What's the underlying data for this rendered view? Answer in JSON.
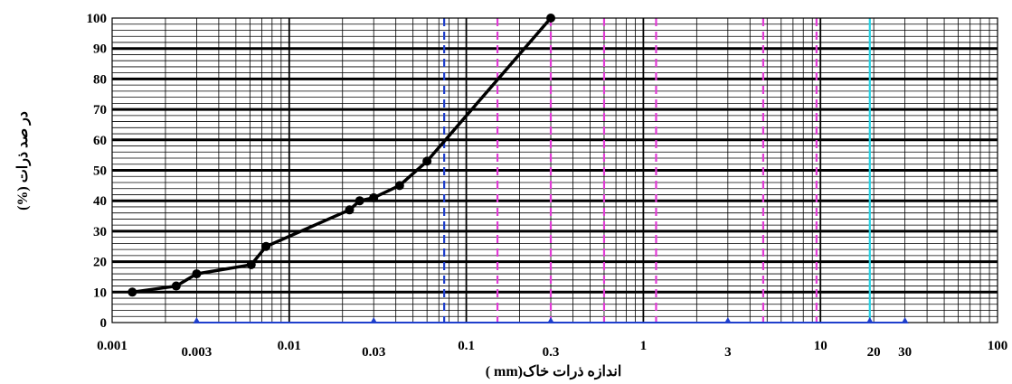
{
  "chart_data": {
    "type": "line",
    "xlabel": "اندازه ذرات خاک(mm )",
    "ylabel": "در صد ذرات (%)",
    "x_scale": "log",
    "xlim": [
      0.001,
      100
    ],
    "ylim": [
      0,
      100
    ],
    "grid": true,
    "y_ticks": [
      "0",
      "10",
      "20",
      "30",
      "40",
      "50",
      "60",
      "70",
      "80",
      "90",
      "100"
    ],
    "x_ticks_upper": [
      {
        "value": 0.001,
        "label": "0.001"
      },
      {
        "value": 0.01,
        "label": "0.01"
      },
      {
        "value": 0.1,
        "label": "0.1"
      },
      {
        "value": 1,
        "label": "1"
      },
      {
        "value": 10,
        "label": "10"
      },
      {
        "value": 100,
        "label": "100"
      }
    ],
    "x_ticks_lower": [
      {
        "value": 0.003,
        "label": "0.003"
      },
      {
        "value": 0.03,
        "label": "0.03"
      },
      {
        "value": 0.3,
        "label": "0.3"
      },
      {
        "value": 3,
        "label": "3"
      },
      {
        "value": 20,
        "label": "20"
      },
      {
        "value": 30,
        "label": "30"
      }
    ],
    "series": [
      {
        "color": "#000000",
        "points": [
          {
            "x": 0.0013,
            "y": 10
          },
          {
            "x": 0.0023,
            "y": 12
          },
          {
            "x": 0.003,
            "y": 16
          },
          {
            "x": 0.0061,
            "y": 19
          },
          {
            "x": 0.0074,
            "y": 25
          },
          {
            "x": 0.0219,
            "y": 37
          },
          {
            "x": 0.025,
            "y": 40
          },
          {
            "x": 0.03,
            "y": 41
          },
          {
            "x": 0.042,
            "y": 45
          },
          {
            "x": 0.06,
            "y": 53
          },
          {
            "x": 0.3,
            "y": 100
          }
        ],
        "marker_indices": [
          0,
          1,
          2,
          3,
          4,
          5,
          6,
          7,
          8,
          9,
          10
        ]
      }
    ],
    "vertical_lines": [
      {
        "x": 0.075,
        "color": "#1f3fcc",
        "style": "dashed"
      },
      {
        "x": 0.15,
        "color": "#e23ad6",
        "style": "dashed"
      },
      {
        "x": 0.3,
        "color": "#e23ad6",
        "style": "dashed"
      },
      {
        "x": 0.6,
        "color": "#e23ad6",
        "style": "dashed"
      },
      {
        "x": 1.18,
        "color": "#e23ad6",
        "style": "dashed"
      },
      {
        "x": 4.75,
        "color": "#e23ad6",
        "style": "dashed"
      },
      {
        "x": 9.5,
        "color": "#e23ad6",
        "style": "dashed"
      },
      {
        "x": 19,
        "color": "#22d3e6",
        "style": "solid"
      }
    ],
    "bottom_markers": [
      0.003,
      0.03,
      0.3,
      3,
      19,
      30
    ],
    "bottom_marker_color": "#1f3fcc"
  }
}
